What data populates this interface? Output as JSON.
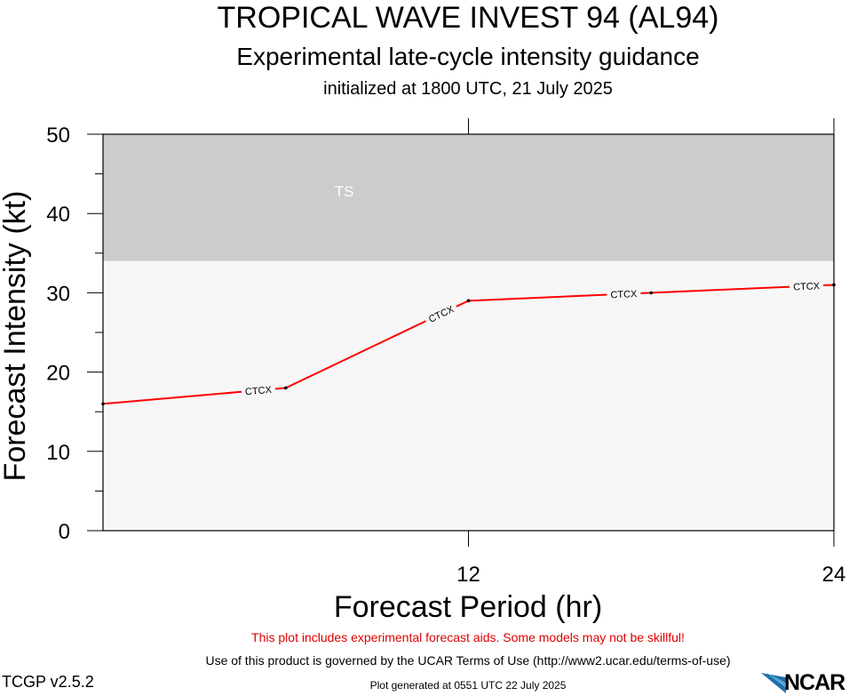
{
  "chart_data": {
    "type": "line",
    "title": "TROPICAL WAVE INVEST 94 (AL94)",
    "subtitle": "Experimental late-cycle intensity guidance",
    "initialized": "initialized at 1800 UTC, 21 July 2025",
    "xlabel": "Forecast Period (hr)",
    "ylabel": "Forecast Intensity (kt)",
    "xlim": [
      0,
      24
    ],
    "ylim": [
      0,
      50
    ],
    "x_ticks": [
      12,
      24
    ],
    "y_ticks": [
      0,
      10,
      20,
      30,
      40,
      50
    ],
    "grid": false,
    "bands": [
      {
        "label": "TS",
        "from": 34,
        "to": 50,
        "color": "#cccccc"
      },
      {
        "label": "",
        "from": 0,
        "to": 34,
        "color": "#f7f7f7"
      }
    ],
    "series": [
      {
        "name": "CTCX",
        "color": "#ff0000",
        "x": [
          0,
          6,
          12,
          18,
          24
        ],
        "values": [
          16,
          18,
          29,
          30,
          31
        ]
      }
    ]
  },
  "footer": {
    "warning": "This plot includes experimental forecast aids. Some models may not be skillful!",
    "terms": "Use of this product is governed by the UCAR Terms of Use (http://www2.ucar.edu/terms-of-use)",
    "version": "TCGP v2.5.2",
    "generated": "Plot generated at 0551 UTC   22 July 2025",
    "logo": "NCAR"
  }
}
